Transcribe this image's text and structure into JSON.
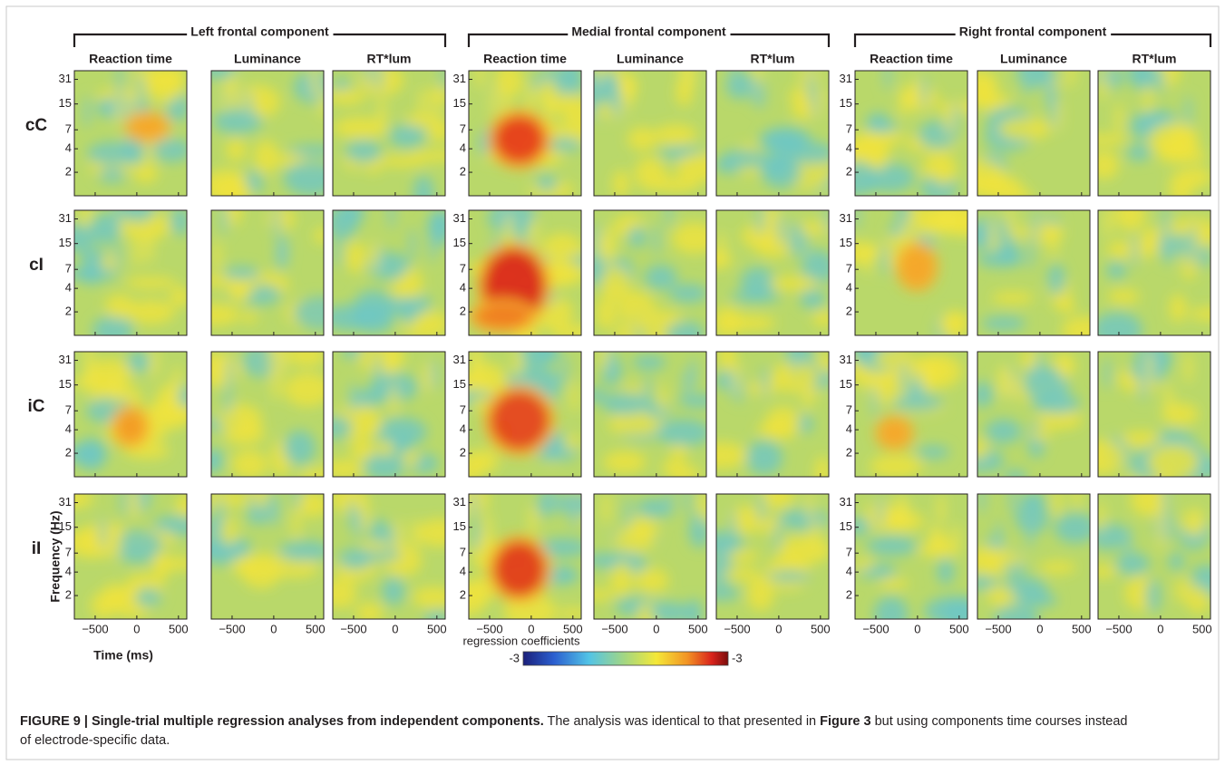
{
  "figure": {
    "components": [
      "Left frontal component",
      "Medial frontal component",
      "Right frontal component"
    ],
    "columns": [
      "Reaction time",
      "Luminance",
      "RT*lum"
    ],
    "rows": [
      "cC",
      "cI",
      "iC",
      "iI"
    ],
    "y_axis": {
      "label": "Frequency (Hz)",
      "ticks": [
        2,
        4,
        7,
        15,
        31
      ],
      "lim": [
        1,
        40
      ],
      "scale": "log"
    },
    "x_axis": {
      "label": "Time (ms)",
      "ticks": [
        {
          "value": -500,
          "label": "−500"
        },
        0,
        500
      ],
      "lim": [
        -750,
        600
      ]
    },
    "colorbar": {
      "label": "regression coefficients",
      "end_labels": [
        "-3",
        "-3"
      ]
    }
  },
  "caption": {
    "lead": "FIGURE 9 | Single-trial multiple regression analyses from independent components.",
    "text_1": " The analysis was identical to that presented in ",
    "figure_ref": "Figure 3",
    "text_2": " but using components time courses instead of electrode-specific data."
  }
}
